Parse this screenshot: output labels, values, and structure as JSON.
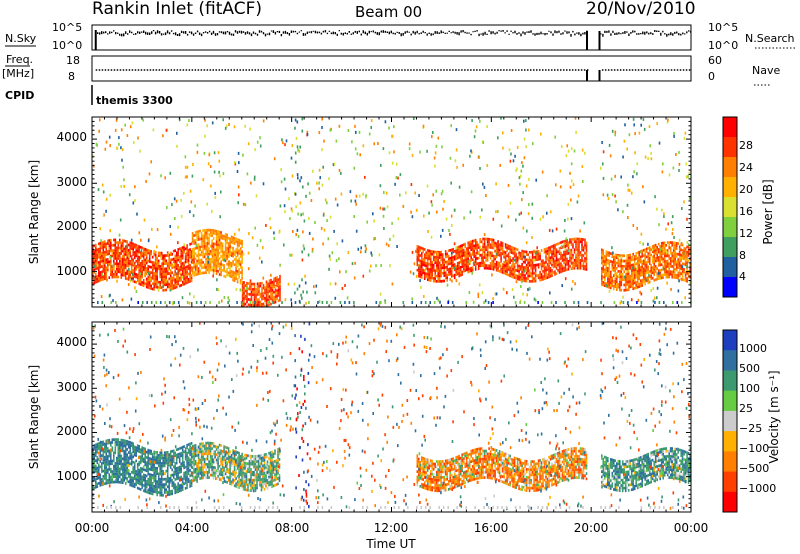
{
  "header": {
    "radar": "Rankin Inlet (fitACF)",
    "beam": "Beam 00",
    "date": "20/Nov/2010"
  },
  "top_panels": {
    "nsky_label": "N.Sky",
    "nsky_ticks": [
      "10^5",
      "10^0"
    ],
    "nsearch_label": "N.Search",
    "nsearch_ticks_right": [
      "10^5",
      "10^0"
    ],
    "freq_label": "Freq.",
    "freq_unit": "[MHz]",
    "freq_ticks": [
      "18",
      "8"
    ],
    "nave_label": "Nave",
    "nave_ticks_right": [
      "60",
      "0"
    ],
    "cpid_label": "CPID",
    "cpid_value": "themis 3300"
  },
  "power_panel": {
    "ylabel": "Slant Range [km]",
    "yticks": [
      "4000",
      "3000",
      "2000",
      "1000"
    ],
    "colorbar_label": "Power [dB]",
    "colorbar_ticks": [
      "28",
      "24",
      "20",
      "16",
      "12",
      "8",
      "4"
    ],
    "colors": [
      "#ff0000",
      "#ff3300",
      "#ff8000",
      "#ffb000",
      "#d9e030",
      "#7fcf3f",
      "#3f9f5f",
      "#2060a0",
      "#0000ff"
    ]
  },
  "velocity_panel": {
    "ylabel": "Slant Range [km]",
    "yticks": [
      "4000",
      "3000",
      "2000",
      "1000"
    ],
    "colorbar_label": "Velocity [m s⁻¹]",
    "colorbar_ticks": [
      "1000",
      "500",
      "100",
      "25",
      "−25",
      "−100",
      "−500",
      "−1000"
    ],
    "colors": [
      "#1d3fbf",
      "#2f70a0",
      "#3d9a70",
      "#66cc44",
      "#cccccc",
      "#ffb000",
      "#ff8000",
      "#ff4000",
      "#ff0000"
    ]
  },
  "xaxis": {
    "label": "Time UT",
    "ticks": [
      "00:00",
      "04:00",
      "08:00",
      "12:00",
      "16:00",
      "20:00",
      "00:00"
    ]
  },
  "chart_data": {
    "type": "heatmap",
    "title": "Rankin Inlet (fitACF)",
    "xlabel": "Time UT",
    "ylabel": "Slant Range [km]",
    "xlim": [
      "00:00",
      "24:00"
    ],
    "ylim": [
      200,
      4500
    ],
    "data_gap_ut": [
      "19:50",
      "20:20"
    ],
    "power_bands_db": [
      {
        "start": "00:00",
        "end": "04:00",
        "range_low": 700,
        "range_high": 1600,
        "power": 26
      },
      {
        "start": "04:00",
        "end": "06:00",
        "range_low": 800,
        "range_high": 1800,
        "power": 22
      },
      {
        "start": "06:00",
        "end": "07:30",
        "range_low": 300,
        "range_high": 900,
        "power": 26
      },
      {
        "start": "13:00",
        "end": "19:50",
        "range_low": 900,
        "range_high": 1600,
        "power": 26
      },
      {
        "start": "20:20",
        "end": "24:00",
        "range_low": 700,
        "range_high": 1500,
        "power": 24
      }
    ],
    "velocity_bands_ms": [
      {
        "start": "00:00",
        "end": "04:00",
        "range_low": 700,
        "range_high": 1700,
        "velocity": 300
      },
      {
        "start": "04:00",
        "end": "07:30",
        "range_low": 800,
        "range_high": 1600,
        "velocity": 100
      },
      {
        "start": "13:00",
        "end": "19:50",
        "range_low": 800,
        "range_high": 1500,
        "velocity": -150
      },
      {
        "start": "20:20",
        "end": "24:00",
        "range_low": 800,
        "range_high": 1500,
        "velocity": 200
      }
    ]
  }
}
